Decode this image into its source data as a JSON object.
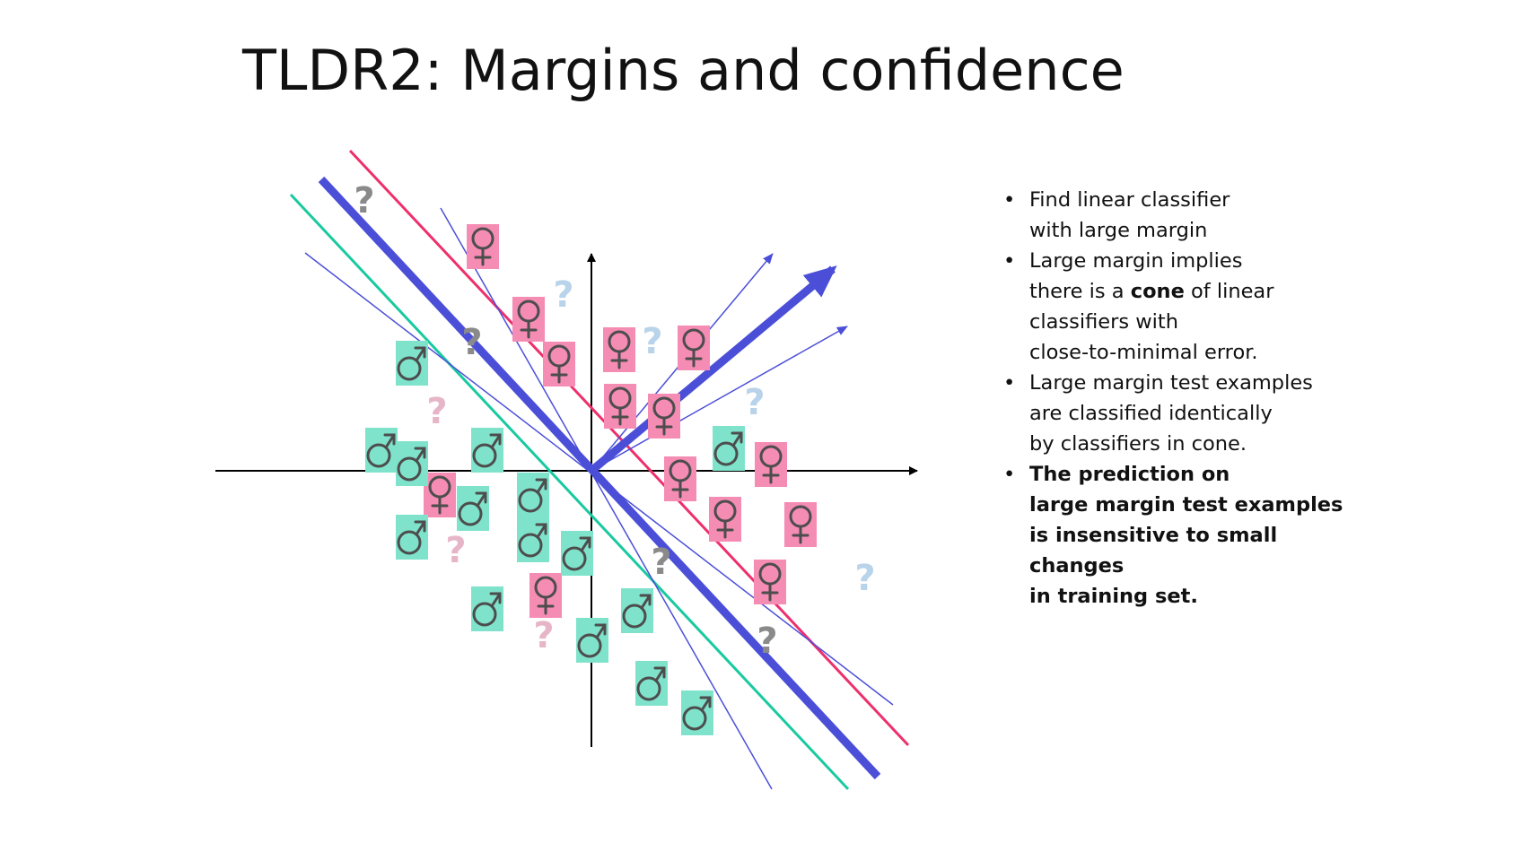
{
  "title": "TLDR2: Margins and confidence",
  "colors": {
    "female_box": "#f58cb4",
    "male_box": "#7fe3cc",
    "classifier": "#4b4fd8",
    "margin_pink": "#ee2f6c",
    "margin_green": "#19c9a0",
    "question_gray": "#8a8a8a",
    "question_pink": "#e6b6c8",
    "question_blue": "#b8d3ea"
  },
  "icons": {
    "female": "female-symbol-icon",
    "male": "male-symbol-icon",
    "question": "question-mark-icon"
  },
  "question_mark": "?",
  "bullets": [
    {
      "lines": [
        [
          {
            "t": "Find linear classifier"
          }
        ],
        [
          {
            "t": "with large margin"
          }
        ]
      ]
    },
    {
      "lines": [
        [
          {
            "t": "Large margin implies"
          }
        ],
        [
          {
            "t": "there is a "
          },
          {
            "t": "cone",
            "b": true
          },
          {
            "t": " of linear"
          }
        ],
        [
          {
            "t": "classifiers with"
          }
        ],
        [
          {
            "t": "close-to-minimal error."
          }
        ]
      ]
    },
    {
      "lines": [
        [
          {
            "t": "Large margin test examples"
          }
        ],
        [
          {
            "t": "are classified identically"
          }
        ],
        [
          {
            "t": "by classifiers in cone."
          }
        ]
      ]
    },
    {
      "lines": [
        [
          {
            "t": "The prediction on",
            "b": true
          }
        ],
        [
          {
            "t": "large margin test examples",
            "b": true
          }
        ],
        [
          {
            "t": "is insensitive to small",
            "b": true
          }
        ],
        [
          {
            "t": "changes",
            "b": true
          }
        ],
        [
          {
            "t": "in  training set.",
            "b": true
          }
        ]
      ]
    }
  ]
}
